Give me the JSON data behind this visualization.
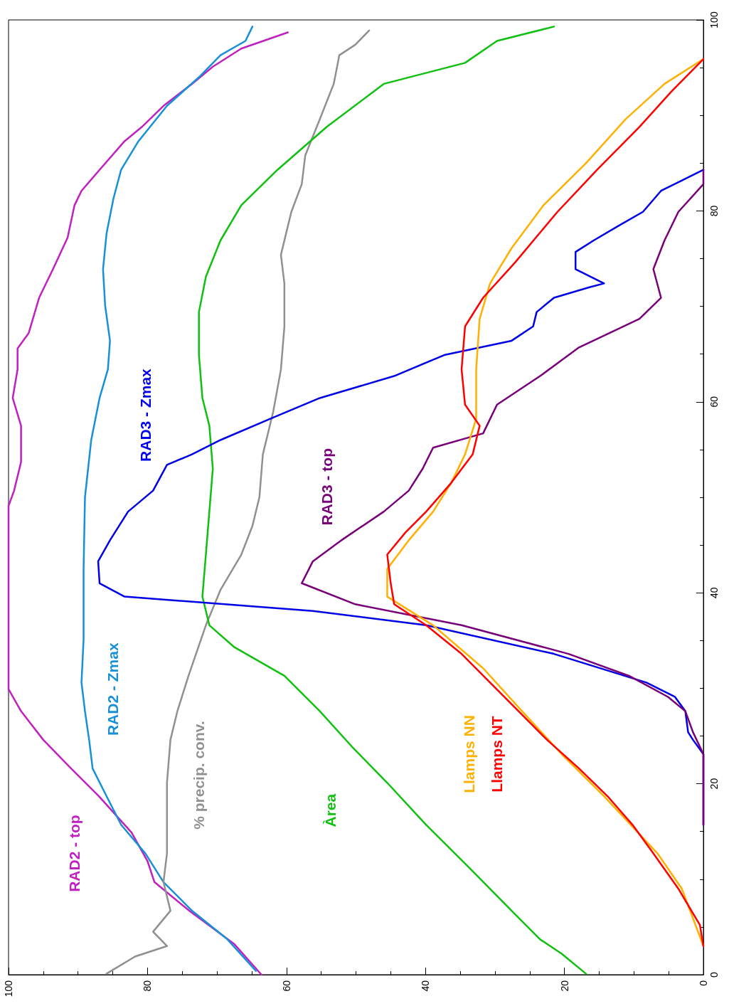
{
  "chart_data": {
    "type": "line",
    "xlim": [
      100,
      0
    ],
    "xticks": [
      0,
      20,
      40,
      60,
      80,
      100
    ],
    "ylim": [
      0,
      100
    ],
    "yticks": [
      0,
      20,
      40,
      60,
      80,
      100
    ],
    "grid": false,
    "legend": false,
    "marker": "none",
    "line_style": "solid",
    "series": [
      {
        "name": "RAD2 - top",
        "color": "#c020c0",
        "values": [
          0,
          3.2,
          6.7,
          9.7,
          11.9,
          14.9,
          18.7,
          21.6,
          24.6,
          27.6,
          29.9,
          49.1,
          50.7,
          53.7,
          57.5,
          60.4,
          63.4,
          65.6,
          67.2,
          70.9,
          73.9,
          77.2,
          80.6,
          82.1,
          84.3,
          87.3,
          88.8,
          91,
          93.3,
          95.1,
          97,
          98.7
        ],
        "x": [
          63.6,
          67.5,
          74,
          79,
          80,
          82.3,
          87,
          91,
          95,
          98.2,
          100,
          100,
          99.2,
          98.2,
          98.2,
          99.4,
          98.7,
          98.7,
          97.1,
          95.6,
          93.6,
          91.5,
          90.5,
          89.5,
          86.9,
          83.3,
          80.8,
          77.7,
          73.6,
          70.6,
          66.5,
          59.8
        ]
      },
      {
        "name": "RAD2 - Zmax",
        "color": "#1890d8",
        "values": [
          0.4,
          3.7,
          6.7,
          9.7,
          12.7,
          15.7,
          18.7,
          21.6,
          24.6,
          27.6,
          30.6,
          35.1,
          42.5,
          50,
          56,
          60.4,
          63.4,
          66.4,
          70.1,
          73.9,
          77.6,
          81.3,
          84.3,
          87.3,
          91,
          94,
          96.3,
          97.8,
          99.3
        ],
        "x": [
          64.4,
          68.5,
          73.6,
          77.7,
          80.3,
          83.8,
          85.9,
          87.9,
          88.4,
          89,
          89.5,
          89.2,
          89.2,
          89,
          88.1,
          86.9,
          85.7,
          85.4,
          86.1,
          86.4,
          85.9,
          84.9,
          83.8,
          81.3,
          77.2,
          72.6,
          69.5,
          65.9,
          64.9
        ]
      },
      {
        "name": "% precip. conv.",
        "color": "#909090",
        "values": [
          0.1,
          1.9,
          3,
          4.5,
          6.7,
          9.7,
          12.7,
          15.7,
          20.1,
          24.6,
          27.6,
          31.3,
          36.6,
          40.3,
          44,
          47,
          50,
          54.5,
          59,
          63.4,
          67.9,
          72.4,
          75.4,
          79.9,
          82.8,
          85.8,
          89.6,
          93.3,
          96.3,
          97.4,
          98.9
        ],
        "x": [
          85.9,
          81.8,
          77.2,
          79.2,
          76.7,
          77.7,
          77.2,
          77.2,
          77.2,
          76.7,
          75.7,
          74.1,
          71.6,
          69.5,
          66.5,
          64.9,
          63.9,
          63.4,
          61.9,
          60.8,
          60.3,
          60.3,
          60.8,
          59.3,
          57.8,
          57.3,
          55.2,
          53.2,
          52.4,
          50.1,
          48.1
        ]
      },
      {
        "name": "Àrea",
        "color": "#10c010",
        "values": [
          0.1,
          2.2,
          3.7,
          6.7,
          11.2,
          15.7,
          20.1,
          23.9,
          27.6,
          31.3,
          34.3,
          36.6,
          39.6,
          44,
          48.5,
          53,
          57.5,
          60.4,
          64.9,
          69.4,
          73.1,
          76.9,
          80.6,
          84.3,
          88.8,
          93.3,
          95.5,
          97.8,
          99.3
        ],
        "x": [
          16.9,
          20.4,
          23.5,
          27.6,
          33.7,
          39.9,
          45.5,
          50.6,
          55.2,
          60.3,
          67.5,
          71.1,
          72.1,
          71.6,
          71.1,
          70.6,
          71.1,
          72.1,
          72.6,
          72.6,
          71.6,
          69.5,
          66.5,
          61.3,
          54.2,
          46,
          34.3,
          29.7,
          21.5
        ]
      },
      {
        "name": "RAD3 - Zmax",
        "color": "#0000e8",
        "values": [
          15.7,
          23.1,
          24.6,
          25.4,
          27.6,
          29.1,
          30.6,
          33.6,
          36.6,
          38.1,
          39.6,
          41,
          43.3,
          45.5,
          48.5,
          50.7,
          53.4,
          54.5,
          56,
          58.2,
          60.4,
          62.7,
          64.9,
          66.4,
          67.9,
          69.4,
          70.9,
          72,
          72.4,
          73.9,
          75.7,
          76.9,
          78.4,
          79.9,
          82.1,
          84.3
        ],
        "x": [
          0,
          0,
          1.5,
          2.2,
          2.6,
          4.1,
          8.2,
          21.5,
          39.9,
          56.2,
          83.3,
          86.9,
          87.1,
          85.4,
          82.8,
          79.2,
          77.2,
          73.6,
          69.5,
          62.4,
          55.2,
          44.5,
          37.3,
          27.6,
          24.5,
          24,
          21.5,
          16.4,
          14.3,
          18.4,
          18.4,
          15.8,
          12.3,
          8.7,
          6.1,
          0
        ]
      },
      {
        "name": "RAD3 - top",
        "color": "#780078",
        "values": [
          15.7,
          23.1,
          25.4,
          27.6,
          29.1,
          31.3,
          33.6,
          36.6,
          38.8,
          41,
          43.3,
          45.5,
          48.5,
          50.7,
          53,
          55.2,
          56.7,
          59.7,
          62.7,
          65.7,
          68.7,
          70.9,
          73.9,
          76.9,
          79.9,
          82.8,
          84.3
        ],
        "x": [
          0,
          0,
          1.5,
          2.6,
          5.1,
          10.7,
          19.4,
          34.8,
          50.1,
          57.8,
          56.2,
          52.1,
          46,
          42.4,
          40.4,
          38.9,
          31.7,
          29.7,
          23.5,
          17.9,
          9.2,
          6.1,
          7.2,
          5.6,
          3.6,
          0,
          0
        ]
      },
      {
        "name": "Llamps NN",
        "color": "#ffb000",
        "values": [
          3,
          9,
          12.7,
          18.7,
          23.1,
          27.6,
          32.1,
          36.6,
          39.6,
          42.5,
          45.5,
          48.5,
          51.5,
          54.5,
          58.2,
          63.4,
          68.7,
          72.4,
          76.1,
          80.6,
          85,
          89.6,
          93.3,
          95.9
        ],
        "x": [
          0,
          3.1,
          6.6,
          14.3,
          20.4,
          26.1,
          31.7,
          38.9,
          45.5,
          45.5,
          42.4,
          38.9,
          36.3,
          34.3,
          32.7,
          32.7,
          32.2,
          30.7,
          27.6,
          23,
          16.9,
          11.2,
          5.6,
          0
        ]
      },
      {
        "name": "Llamps NT",
        "color": "#ff0000",
        "values": [
          3,
          5.2,
          9,
          12.7,
          15.7,
          18.7,
          21.6,
          24.6,
          27.6,
          30.6,
          33.6,
          36.6,
          38.8,
          41,
          44,
          46.3,
          48.5,
          51.5,
          54.5,
          57.5,
          59.7,
          63.4,
          67.9,
          70.9,
          74.6,
          79.9,
          84.3,
          88.8,
          92.5,
          95.9
        ],
        "x": [
          0,
          0.5,
          3.6,
          7.2,
          10.2,
          13.8,
          17.9,
          22.5,
          26.6,
          30.7,
          34.8,
          39.9,
          44.5,
          45,
          45.5,
          42.9,
          39.9,
          36.3,
          33.2,
          32.2,
          34.3,
          34.8,
          34.3,
          31.7,
          27.1,
          21,
          15.3,
          9.2,
          4.6,
          0
        ]
      }
    ]
  }
}
